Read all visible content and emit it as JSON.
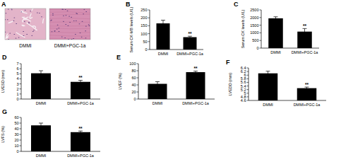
{
  "chart_data": [
    {
      "label": "A",
      "type": "image",
      "categories": [
        "DMMI",
        "DMMI+PGC-1a"
      ]
    },
    {
      "label": "B",
      "type": "bar",
      "ylabel": "Serum CK-MB levels (U/L)",
      "categories": [
        "DMMI",
        "DMMI+PGC-1a"
      ],
      "values": [
        165,
        78
      ],
      "errors": [
        20,
        6
      ],
      "significance_labels": [
        null,
        "**"
      ],
      "color": "#000000",
      "ylim": [
        0,
        250
      ],
      "yticks": [
        0,
        50,
        100,
        150,
        200,
        250
      ]
    },
    {
      "label": "C",
      "type": "bar",
      "ylabel": "Serum CK levels (U/L)",
      "categories": [
        "DMMI",
        "DMMI+PGC-1a"
      ],
      "values": [
        1950,
        1080
      ],
      "errors": [
        100,
        200
      ],
      "significance_labels": [
        null,
        "**"
      ],
      "color": "#000000",
      "ylim": [
        0,
        2500
      ],
      "yticks": [
        0,
        500,
        1000,
        1500,
        2000,
        2500
      ]
    },
    {
      "label": "D",
      "type": "bar",
      "ylabel": "LVESD (mm)",
      "categories": [
        "DMMI",
        "DMMI+PGC-1a"
      ],
      "values": [
        5.1,
        3.4
      ],
      "errors": [
        0.5,
        0.3
      ],
      "significance_labels": [
        null,
        "**"
      ],
      "color": "#000000",
      "ylim": [
        0,
        7
      ],
      "yticks": [
        0,
        1,
        2,
        3,
        4,
        5,
        6,
        7
      ]
    },
    {
      "label": "E",
      "type": "bar",
      "ylabel": "LVEF (%)",
      "categories": [
        "DMMI",
        "DMMI+PGC-1a"
      ],
      "values": [
        43,
        76
      ],
      "errors": [
        6,
        3
      ],
      "significance_labels": [
        null,
        "**"
      ],
      "color": "#000000",
      "ylim": [
        0,
        100
      ],
      "yticks": [
        0,
        20,
        40,
        60,
        80,
        100
      ]
    },
    {
      "label": "F",
      "type": "bar",
      "ylabel": "LVEDD (mm)",
      "categories": [
        "DMMI",
        "DMMI+PGC-1a"
      ],
      "values": [
        6.1,
        5.28
      ],
      "errors": [
        0.12,
        0.06
      ],
      "significance_labels": [
        null,
        "**"
      ],
      "color": "#000000",
      "ylim": [
        4.6,
        6.4
      ],
      "yticks": [
        4.6,
        4.8,
        5,
        5.2,
        5.4,
        5.6,
        5.8,
        6,
        6.2,
        6.4
      ]
    },
    {
      "label": "G",
      "type": "bar",
      "ylabel": "LVFS (%)",
      "categories": [
        "DMMI",
        "DMMI+PGC-1a"
      ],
      "values": [
        46,
        34
      ],
      "errors": [
        4,
        2
      ],
      "significance_labels": [
        null,
        "**"
      ],
      "color": "#000000",
      "ylim": [
        0,
        60
      ],
      "yticks": [
        0,
        10,
        20,
        30,
        40,
        50,
        60
      ]
    }
  ]
}
